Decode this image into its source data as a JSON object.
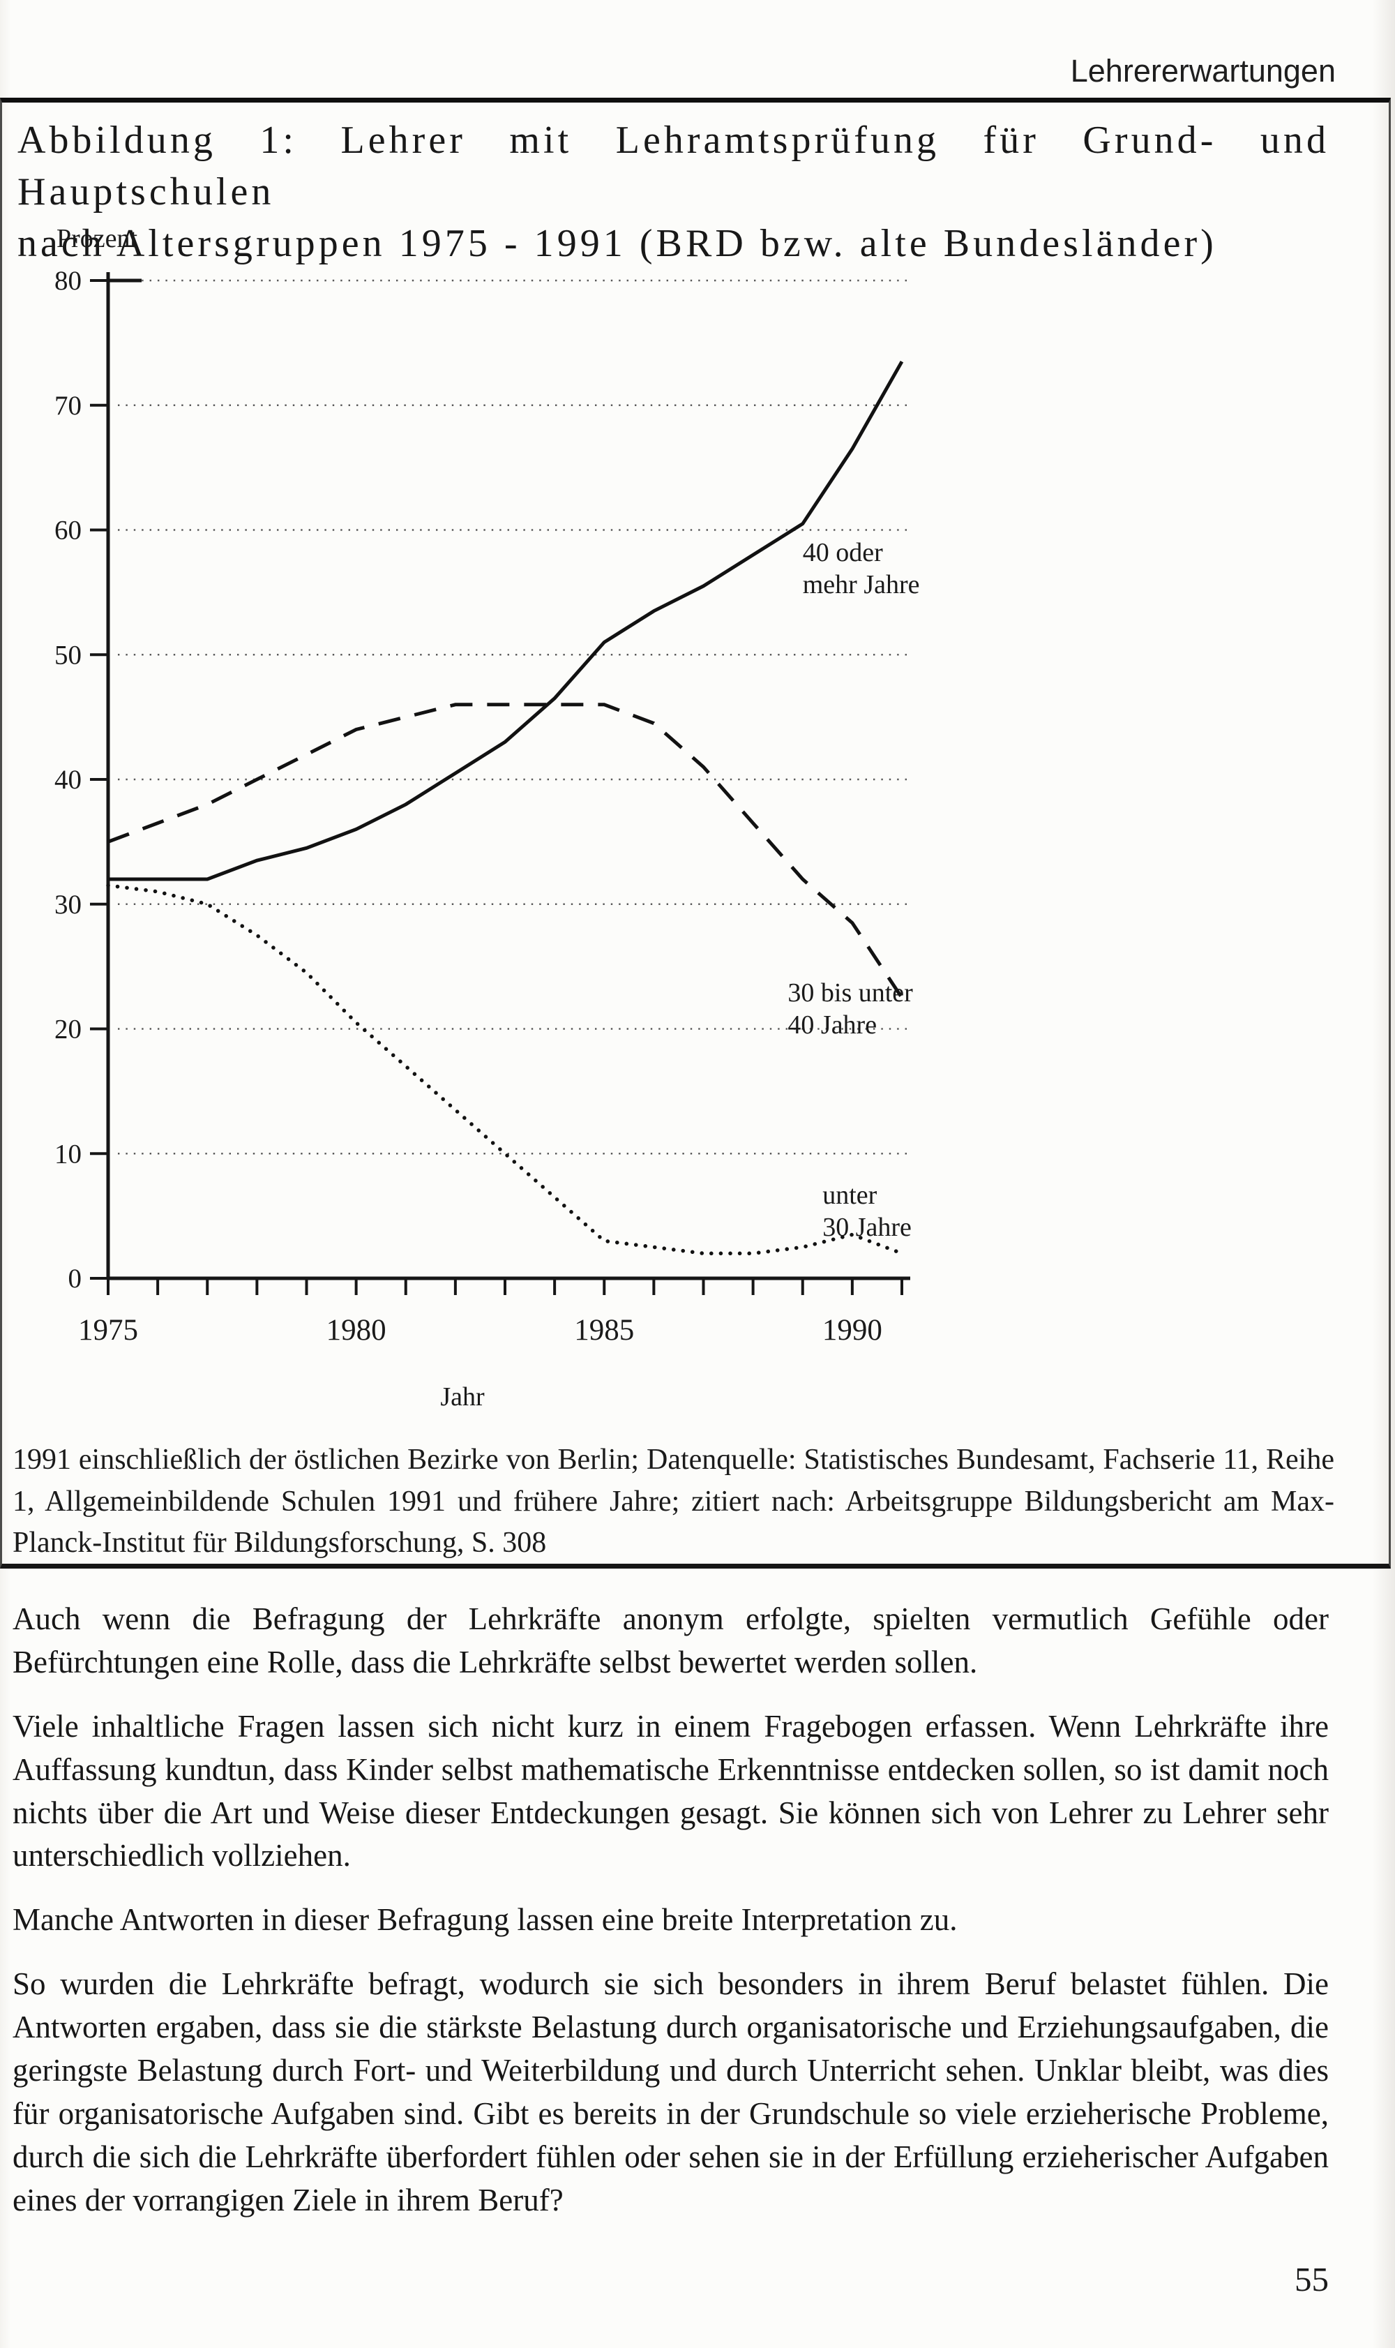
{
  "page": {
    "header": "Lehrererwartungen",
    "page_number": "55"
  },
  "figure": {
    "caption_line1": "Abbildung 1: Lehrer mit Lehramtsprüfung für Grund- und Hauptschulen",
    "caption_line2": "nach Altersgruppen 1975 - 1991 (BRD bzw. alte Bundesländer)",
    "source_note": "1991 einschließlich der östlichen Bezirke von Berlin; Datenquelle: Statistisches Bundesamt, Fachserie 11, Reihe 1, Allgemeinbildende Schulen 1991 und frühere Jahre; zitiert nach: Arbeitsgruppe Bildungsbericht am Max-Planck-Institut für Bildungsforschung, S. 308"
  },
  "chart_data": {
    "type": "line",
    "title": "",
    "ylabel": "Prozent",
    "xlabel": "Jahr",
    "ylim": [
      0,
      80
    ],
    "xlim": [
      1975,
      1991
    ],
    "yticks": [
      0,
      10,
      20,
      30,
      40,
      50,
      60,
      70,
      80
    ],
    "xticks": [
      1975,
      1980,
      1985,
      1990
    ],
    "grid": "dotted horizontal",
    "legend_position": "inline labels",
    "x": [
      1975,
      1976,
      1977,
      1978,
      1979,
      1980,
      1981,
      1982,
      1983,
      1984,
      1985,
      1986,
      1987,
      1988,
      1989,
      1990,
      1991
    ],
    "series": [
      {
        "name": "40 oder mehr Jahre",
        "style": "solid",
        "values": [
          32,
          32,
          32,
          33.5,
          34.5,
          36,
          38,
          40.5,
          43,
          46.5,
          51,
          53.5,
          55.5,
          58,
          60.5,
          66.5,
          73.5
        ]
      },
      {
        "name": "30 bis unter 40 Jahre",
        "style": "dashed",
        "values": [
          35,
          36.5,
          38,
          40,
          42,
          44,
          45,
          46,
          46,
          46,
          46,
          44.5,
          41,
          36.5,
          32,
          28.5,
          22.5
        ]
      },
      {
        "name": "unter 30 Jahre",
        "style": "dotted",
        "values": [
          31.5,
          31,
          30,
          27.5,
          24.5,
          20.5,
          17,
          13.5,
          10,
          6.5,
          3,
          2.5,
          2,
          2,
          2.5,
          3.5,
          2
        ]
      }
    ],
    "labels": [
      {
        "series": "40 oder mehr Jahre",
        "lines": [
          "40 oder",
          "mehr Jahre"
        ],
        "x": 1989.0,
        "y": 57.5
      },
      {
        "series": "30 bis unter 40 Jahre",
        "lines": [
          "30 bis unter",
          "40 Jahre"
        ],
        "x": 1988.7,
        "y": 22.2
      },
      {
        "series": "unter 30 Jahre",
        "lines": [
          "unter",
          "30 Jahre"
        ],
        "x": 1989.4,
        "y": 6.0
      }
    ]
  },
  "body": {
    "paragraphs": [
      "Auch wenn die Befragung der Lehrkräfte anonym erfolgte, spielten vermutlich Gefühle oder Befürchtungen eine Rolle, dass die Lehrkräfte selbst bewertet werden sollen.",
      "Viele inhaltliche Fragen lassen sich nicht kurz in einem Fragebogen erfassen. Wenn Lehrkräfte ihre Auffassung kundtun, dass Kinder selbst mathematische Erkenntnisse entdecken sollen, so ist damit noch nichts über die Art und Weise dieser Entdeckungen gesagt. Sie können sich von Lehrer zu Lehrer sehr unterschiedlich vollziehen.",
      "Manche Antworten in dieser Befragung lassen eine breite Interpretation zu.",
      "So wurden die Lehrkräfte befragt, wodurch sie sich besonders in ihrem Beruf belastet fühlen. Die Antworten ergaben, dass sie die stärkste Belastung durch organisatorische und Erziehungsaufgaben, die geringste Belastung durch Fort- und Weiterbildung und durch Unterricht sehen. Unklar bleibt, was dies für organisatorische Aufgaben sind. Gibt es bereits in der Grundschule so viele erzieherische Probleme, durch die sich die Lehrkräfte überfordert fühlen oder sehen sie in der Erfüllung erzieherischer Aufgaben eines der vorrangigen Ziele in ihrem Beruf?"
    ]
  }
}
